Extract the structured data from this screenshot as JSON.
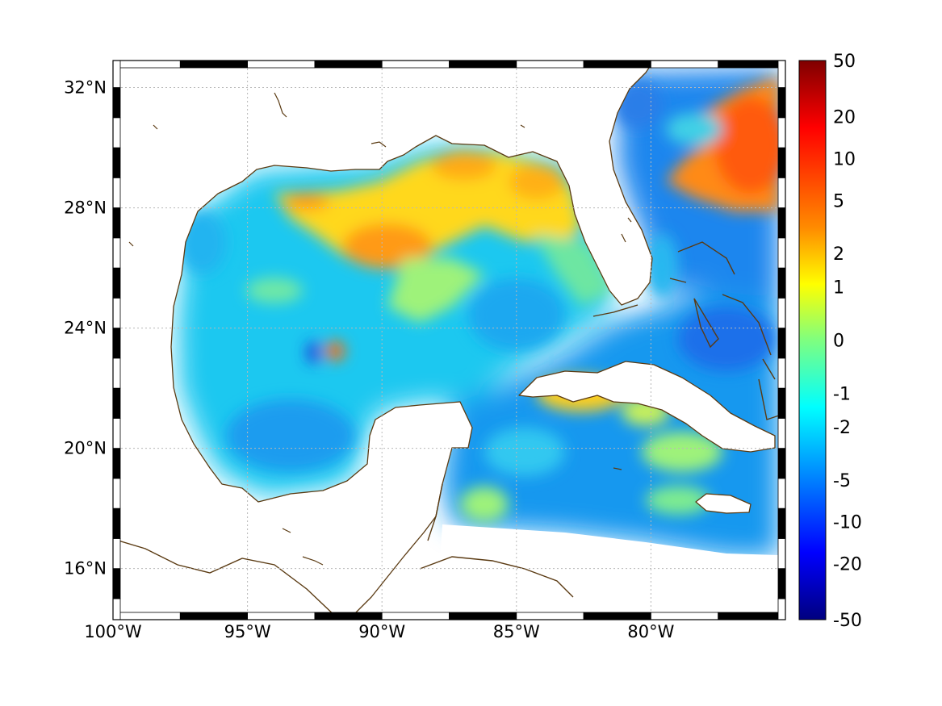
{
  "map": {
    "lon_range": [
      -100,
      -75
    ],
    "lat_range": [
      14.3,
      32.9
    ],
    "x_ticks": [
      {
        "lon": -100,
        "label": "100°W"
      },
      {
        "lon": -95,
        "label": "95°W"
      },
      {
        "lon": -90,
        "label": "90°W"
      },
      {
        "lon": -85,
        "label": "85°W"
      },
      {
        "lon": -80,
        "label": "80°W"
      }
    ],
    "y_ticks": [
      {
        "lat": 32,
        "label": "32°N"
      },
      {
        "lat": 28,
        "label": "28°N"
      },
      {
        "lat": 24,
        "label": "24°N"
      },
      {
        "lat": 20,
        "label": "20°N"
      },
      {
        "lat": 16,
        "label": "16°N"
      }
    ],
    "grid": true,
    "coastline_color": "#5a3a12",
    "land_color": "#ffffff"
  },
  "colorbar": {
    "labels": [
      "50",
      "20",
      "10",
      "5",
      "2",
      "1",
      "0",
      "-1",
      "-2",
      "-5",
      "-10",
      "-20",
      "-50"
    ],
    "colormap": "jet",
    "placement": "right"
  }
}
